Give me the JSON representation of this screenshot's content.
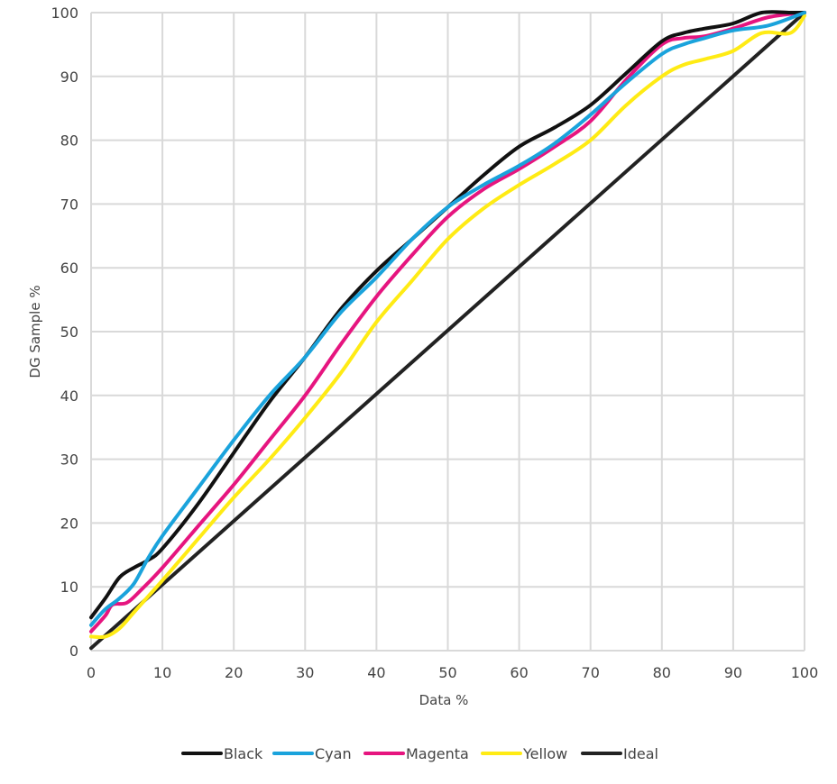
{
  "chart_data": {
    "type": "line",
    "title": "",
    "xlabel": "Data %",
    "ylabel": "DG Sample %",
    "xlim": [
      0,
      100
    ],
    "ylim": [
      0,
      100
    ],
    "x_ticks": [
      0,
      10,
      20,
      30,
      40,
      50,
      60,
      70,
      80,
      90,
      100
    ],
    "y_ticks": [
      0,
      10,
      20,
      30,
      40,
      50,
      60,
      70,
      80,
      90,
      100
    ],
    "grid": true,
    "legend_position": "bottom",
    "series": [
      {
        "name": "Black",
        "color": "#111111",
        "points": [
          [
            0,
            5.2
          ],
          [
            2,
            8.2
          ],
          [
            4,
            11.5
          ],
          [
            6,
            13
          ],
          [
            8,
            14.2
          ],
          [
            10,
            16
          ],
          [
            15,
            23
          ],
          [
            20,
            31
          ],
          [
            25,
            39
          ],
          [
            30,
            46
          ],
          [
            35,
            53.5
          ],
          [
            40,
            59.5
          ],
          [
            45,
            64.5
          ],
          [
            50,
            69.5
          ],
          [
            55,
            74.5
          ],
          [
            60,
            79
          ],
          [
            65,
            82
          ],
          [
            70,
            85.5
          ],
          [
            75,
            90.5
          ],
          [
            80,
            95.5
          ],
          [
            83,
            96.8
          ],
          [
            86,
            97.5
          ],
          [
            90,
            98.3
          ],
          [
            94,
            100
          ],
          [
            98,
            100
          ],
          [
            100,
            100
          ]
        ]
      },
      {
        "name": "Cyan",
        "color": "#1aa3dc",
        "points": [
          [
            0,
            4
          ],
          [
            2,
            6.5
          ],
          [
            4,
            8.2
          ],
          [
            6,
            10.5
          ],
          [
            8,
            14.5
          ],
          [
            10,
            18
          ],
          [
            15,
            25.5
          ],
          [
            20,
            33
          ],
          [
            25,
            40
          ],
          [
            30,
            46
          ],
          [
            35,
            53
          ],
          [
            40,
            58.5
          ],
          [
            45,
            64.5
          ],
          [
            50,
            69.5
          ],
          [
            55,
            73
          ],
          [
            60,
            76
          ],
          [
            65,
            79.5
          ],
          [
            70,
            84
          ],
          [
            75,
            89
          ],
          [
            80,
            93.5
          ],
          [
            83,
            95
          ],
          [
            86,
            96
          ],
          [
            90,
            97.2
          ],
          [
            95,
            98
          ],
          [
            100,
            100
          ]
        ]
      },
      {
        "name": "Magenta",
        "color": "#e6157f",
        "points": [
          [
            0,
            3
          ],
          [
            2,
            5.5
          ],
          [
            3,
            7.2
          ],
          [
            5,
            7.5
          ],
          [
            7,
            9.5
          ],
          [
            10,
            13
          ],
          [
            15,
            19.5
          ],
          [
            20,
            26
          ],
          [
            25,
            33
          ],
          [
            30,
            40
          ],
          [
            35,
            48
          ],
          [
            40,
            55.5
          ],
          [
            45,
            62
          ],
          [
            50,
            68
          ],
          [
            55,
            72.3
          ],
          [
            60,
            75.5
          ],
          [
            65,
            79
          ],
          [
            70,
            83
          ],
          [
            75,
            89.5
          ],
          [
            80,
            95
          ],
          [
            83,
            96
          ],
          [
            86,
            96.3
          ],
          [
            90,
            97.5
          ],
          [
            95,
            99.3
          ],
          [
            100,
            100
          ]
        ]
      },
      {
        "name": "Yellow",
        "color": "#ffeb14",
        "points": [
          [
            0,
            2.2
          ],
          [
            2,
            2.2
          ],
          [
            4,
            3.5
          ],
          [
            6,
            6
          ],
          [
            8,
            8.5
          ],
          [
            10,
            11
          ],
          [
            15,
            17.5
          ],
          [
            20,
            24
          ],
          [
            25,
            30
          ],
          [
            30,
            36.5
          ],
          [
            35,
            43.5
          ],
          [
            40,
            51.5
          ],
          [
            45,
            58
          ],
          [
            50,
            64.5
          ],
          [
            55,
            69.3
          ],
          [
            60,
            73
          ],
          [
            65,
            76.3
          ],
          [
            70,
            80
          ],
          [
            75,
            85.5
          ],
          [
            80,
            90
          ],
          [
            83,
            91.8
          ],
          [
            86,
            92.7
          ],
          [
            90,
            94
          ],
          [
            94,
            96.8
          ],
          [
            98,
            96.8
          ],
          [
            100,
            99.5
          ]
        ]
      },
      {
        "name": "Ideal",
        "color": "#222222",
        "points": [
          [
            0,
            0.4
          ],
          [
            100,
            100
          ]
        ]
      }
    ]
  }
}
